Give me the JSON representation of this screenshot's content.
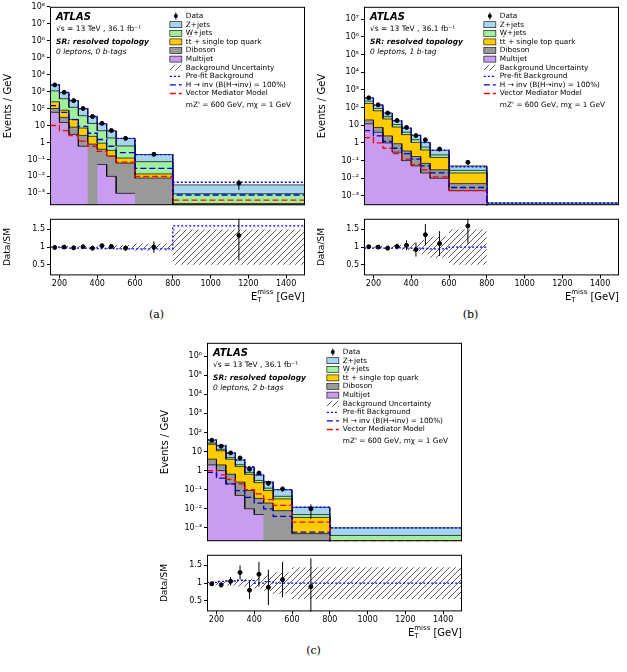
{
  "chart_data": [
    {
      "type": "histogram",
      "panel": "(a)",
      "log": "y",
      "stacked": true,
      "grid": false,
      "legend": "upper right",
      "atlas_label": "ATLAS",
      "energy_label": "√s = 13 TeV , 36.1 fb⁻¹",
      "region": "SR: resolved topology",
      "selection": "0 leptons, 0 b-tags",
      "annotation": "mZ' = 600 GeV, mχ = 1 GeV",
      "x_label": {
        "text": "E",
        "sub": "T",
        "sup": "miss",
        "unit": "[GeV]"
      },
      "y_label": "Events / GeV",
      "bins": [
        150,
        200,
        250,
        300,
        350,
        400,
        450,
        500,
        600,
        800,
        1500
      ],
      "xlim": [
        150,
        1500
      ],
      "xticks": [
        200,
        400,
        600,
        800,
        1000,
        1200,
        1400
      ],
      "ylim": [
        0.0002,
        100000000
      ],
      "yticks": [
        {
          "value": 0.001,
          "label": "10⁻³"
        },
        {
          "value": 0.01,
          "label": "10⁻²"
        },
        {
          "value": 0.1,
          "label": "10⁻¹"
        },
        1,
        10,
        {
          "value": 100,
          "label": "10²"
        },
        {
          "value": 1000,
          "label": "10³"
        },
        {
          "value": 10000,
          "label": "10⁴"
        },
        {
          "value": 100000,
          "label": "10⁵"
        },
        {
          "value": 1000000,
          "label": "10⁶"
        },
        {
          "value": 10000000,
          "label": "10⁷"
        },
        {
          "value": 100000000,
          "label": "10⁸"
        }
      ],
      "series": [
        {
          "name": "Z+jets",
          "color": "#a6d5f0",
          "values": [
            1400,
            520,
            175,
            60,
            21,
            8,
            3.1,
            1.1,
            0.12,
            0.0022
          ]
        },
        {
          "name": "W+jets",
          "color": "#a0f0a0",
          "values": [
            850,
            300,
            95,
            31,
            11,
            4,
            1.5,
            0.5,
            0.06,
            0.0007
          ]
        },
        {
          "name": "tt̄ + single top quark",
          "color": "#ffcc00",
          "values": [
            150,
            50,
            15,
            4.5,
            1.5,
            0.5,
            0.18,
            0.06,
            0.006,
            5e-05
          ]
        },
        {
          "name": "Diboson",
          "color": "#999999",
          "values": [
            40,
            15,
            5,
            2,
            0.8,
            0.35,
            0.15,
            0.06,
            0.008,
            0.0002
          ]
        },
        {
          "name": "Multijet",
          "color": "#c89cf0",
          "values": [
            60,
            15,
            3,
            0.6,
            0,
            0.05,
            0.01,
            0.001,
            0,
            0
          ]
        }
      ],
      "data": {
        "name": "Data",
        "color": "#000000",
        "values": [
          2480,
          905,
          295,
          101,
          34,
          13.5,
          5.1,
          1.75,
          0.2,
          0.004
        ],
        "errors": [
          7.0,
          4.3,
          2.4,
          1.4,
          0.82,
          0.52,
          0.32,
          0.13,
          0.032,
          0.0024
        ]
      },
      "uncertainty": {
        "name": "Background Uncertainty",
        "values": [
          0.03,
          0.03,
          0.03,
          0.03,
          0.035,
          0.04,
          0.05,
          0.06,
          0.1,
          0.5
        ]
      },
      "lines": [
        {
          "name": "Pre-fit Background",
          "color": "#0000ff",
          "line_style": "dotted",
          "values": [
            2450,
            880,
            290,
            98,
            34,
            12.7,
            4.9,
            1.75,
            0.19,
            0.0045
          ]
        },
        {
          "name": "H → inv (B(H→inv) = 100%)",
          "color": "#0000cc",
          "line_style": "dashed",
          "values": [
            150,
            60,
            22,
            9,
            3.5,
            1.5,
            0.6,
            0.25,
            0.03,
            0.0008
          ]
        },
        {
          "name": "Vector Mediator Model",
          "color": "#ff0000",
          "line_style": "dashed",
          "values": [
            10,
            5,
            2.5,
            1.2,
            0.6,
            0.3,
            0.15,
            0.07,
            0.01,
            0.0004
          ]
        }
      ],
      "ratio": {
        "y_label": "Data/SM",
        "ylim": [
          0.2,
          1.8
        ],
        "yticks": [
          0.5,
          1,
          1.5
        ],
        "values": [
          0.99,
          1.0,
          0.98,
          1.01,
          0.97,
          1.04,
          1.02,
          0.97,
          1.0,
          1.33
        ],
        "errors": [
          0.01,
          0.01,
          0.01,
          0.015,
          0.025,
          0.04,
          0.06,
          0.08,
          0.16,
          0.7
        ],
        "prefit": [
          1.0,
          0.98,
          0.97,
          0.97,
          0.97,
          0.96,
          0.96,
          0.95,
          0.95,
          1.6
        ]
      }
    },
    {
      "type": "histogram",
      "panel": "(b)",
      "log": "y",
      "stacked": true,
      "grid": false,
      "legend": "upper right",
      "atlas_label": "ATLAS",
      "energy_label": "√s = 13 TeV , 36.1 fb⁻¹",
      "region": "SR: resolved topology",
      "selection": "0 leptons, 1 b-tag",
      "annotation": "mZ' = 600 GeV, mχ = 1 GeV",
      "x_label": {
        "text": "E",
        "sub": "T",
        "sup": "miss",
        "unit": "[GeV]"
      },
      "y_label": "Events / GeV",
      "bins": [
        150,
        200,
        250,
        300,
        350,
        400,
        450,
        500,
        600,
        800,
        1500
      ],
      "xlim": [
        150,
        1500
      ],
      "xticks": [
        200,
        400,
        600,
        800,
        1000,
        1200,
        1400
      ],
      "ylim": [
        0.0003,
        50000000
      ],
      "yticks": [
        {
          "value": 0.001,
          "label": "10⁻³"
        },
        {
          "value": 0.01,
          "label": "10⁻²"
        },
        {
          "value": 0.1,
          "label": "10⁻¹"
        },
        1,
        10,
        {
          "value": 100,
          "label": "10²"
        },
        {
          "value": 1000,
          "label": "10³"
        },
        {
          "value": 10000,
          "label": "10⁴"
        },
        {
          "value": 100000,
          "label": "10⁵"
        },
        {
          "value": 1000000,
          "label": "10⁶"
        },
        {
          "value": 10000000,
          "label": "10⁷"
        }
      ],
      "series": [
        {
          "name": "Z+jets",
          "color": "#a6d5f0",
          "values": [
            120,
            50,
            19,
            7,
            2.8,
            1.2,
            0.5,
            0.18,
            0.022,
            0.0002
          ]
        },
        {
          "name": "W+jets",
          "color": "#a0f0a0",
          "values": [
            60,
            24,
            8,
            3,
            1.1,
            0.45,
            0.18,
            0.06,
            0.008,
            0.0001
          ]
        },
        {
          "name": "tt̄ + single top quark",
          "color": "#ffcc00",
          "values": [
            150,
            58,
            20,
            7,
            2.6,
            0.9,
            0.33,
            0.12,
            0.015,
            0.0001
          ]
        },
        {
          "name": "Diboson",
          "color": "#999999",
          "values": [
            8,
            3.5,
            1.5,
            0.6,
            0.25,
            0.12,
            0.05,
            0.02,
            0.003,
            0
          ]
        },
        {
          "name": "Multijet",
          "color": "#c89cf0",
          "values": [
            12,
            4,
            1,
            0.3,
            0.1,
            0.05,
            0.02,
            0.01,
            0.002,
            0
          ]
        }
      ],
      "data": {
        "name": "Data",
        "color": "#000000",
        "values": [
          355,
          142,
          49,
          18.5,
          7.5,
          2.6,
          1.5,
          0.45,
          0.08,
          null
        ],
        "errors": [
          2.7,
          1.7,
          1.0,
          0.61,
          0.39,
          0.23,
          0.17,
          0.067,
          0.02,
          null
        ]
      },
      "uncertainty": {
        "name": "Background Uncertainty",
        "values": [
          0.04,
          0.04,
          0.05,
          0.06,
          0.08,
          0.12,
          0.2,
          0.3,
          0.5,
          null
        ]
      },
      "lines": [
        {
          "name": "Pre-fit Background",
          "color": "#0000ff",
          "line_style": "dotted",
          "values": [
            340,
            138,
            48,
            17.5,
            6.8,
            2.7,
            1.05,
            0.38,
            0.045,
            0.0004
          ]
        },
        {
          "name": "H → inv (B(H→inv) = 100%)",
          "color": "#0000cc",
          "line_style": "dashed",
          "values": [
            5,
            2.5,
            1.2,
            0.5,
            0.25,
            0.12,
            0.05,
            0.02,
            0.003,
            0.0001
          ]
        },
        {
          "name": "Vector Mediator Model",
          "color": "#ff0000",
          "line_style": "dashed",
          "values": [
            2,
            1,
            0.5,
            0.25,
            0.12,
            0.06,
            0.03,
            0.012,
            0.002,
            5e-05
          ]
        }
      ],
      "ratio": {
        "y_label": "Data/SM",
        "ylim": [
          0.2,
          1.8
        ],
        "yticks": [
          0.5,
          1,
          1.5
        ],
        "values": [
          1.01,
          1.0,
          0.97,
          1.02,
          1.05,
          0.93,
          1.35,
          1.1,
          1.6,
          null
        ],
        "errors": [
          0.02,
          0.03,
          0.05,
          0.08,
          0.14,
          0.2,
          0.3,
          0.35,
          0.5,
          null
        ],
        "prefit": [
          0.97,
          0.98,
          0.97,
          0.98,
          0.97,
          0.97,
          0.96,
          0.95,
          1.0,
          null
        ]
      }
    },
    {
      "type": "histogram",
      "panel": "(c)",
      "log": "y",
      "stacked": true,
      "grid": false,
      "legend": "upper right",
      "atlas_label": "ATLAS",
      "energy_label": "√s = 13 TeV , 36.1 fb⁻¹",
      "region": "SR: resolved topology",
      "selection": "0 leptons, 2 b-tags",
      "annotation": "mZ' = 600 GeV, mχ = 1 GeV",
      "x_label": {
        "text": "E",
        "sub": "T",
        "sup": "miss",
        "unit": "[GeV]"
      },
      "y_label": "Events / GeV",
      "bins": [
        150,
        200,
        250,
        300,
        350,
        400,
        450,
        500,
        600,
        800,
        1500
      ],
      "xlim": [
        150,
        1500
      ],
      "xticks": [
        200,
        400,
        600,
        800,
        1000,
        1200,
        1400
      ],
      "ylim": [
        0.0002,
        5000000
      ],
      "yticks": [
        {
          "value": 0.001,
          "label": "10⁻³"
        },
        {
          "value": 0.01,
          "label": "10⁻²"
        },
        {
          "value": 0.1,
          "label": "10⁻¹"
        },
        1,
        10,
        {
          "value": 100,
          "label": "10²"
        },
        {
          "value": 1000,
          "label": "10³"
        },
        {
          "value": 10000,
          "label": "10⁴"
        },
        {
          "value": 100000,
          "label": "10⁵"
        },
        {
          "value": 1000000,
          "label": "10⁶"
        }
      ],
      "series": [
        {
          "name": "Z+jets",
          "color": "#a6d5f0",
          "values": [
            12,
            7,
            3.2,
            1.5,
            0.7,
            0.3,
            0.13,
            0.055,
            0.007,
            0.0006
          ]
        },
        {
          "name": "W+jets",
          "color": "#a0f0a0",
          "values": [
            4,
            2,
            0.9,
            0.4,
            0.17,
            0.07,
            0.03,
            0.012,
            0.0015,
            0.0003
          ]
        },
        {
          "name": "tt̄ + single top quark",
          "color": "#ffcc00",
          "values": [
            20,
            9,
            3.3,
            1.4,
            0.55,
            0.2,
            0.07,
            0.025,
            0.003,
            0.0001
          ]
        },
        {
          "name": "Diboson",
          "color": "#999999",
          "values": [
            2,
            1,
            0.45,
            0.2,
            0.08,
            0.03,
            0.02,
            0.008,
            0.0005,
            0
          ]
        },
        {
          "name": "Multijet",
          "color": "#c89cf0",
          "values": [
            2,
            1,
            0.2,
            0.05,
            0.01,
            0.005,
            0,
            0,
            0,
            0
          ]
        }
      ],
      "data": {
        "name": "Data",
        "color": "#000000",
        "values": [
          39,
          19,
          8.5,
          4.6,
          1.2,
          0.75,
          0.22,
          0.11,
          0.01,
          null
        ],
        "errors": [
          0.88,
          0.62,
          0.41,
          0.3,
          0.15,
          0.12,
          0.066,
          0.033,
          0.007,
          null
        ]
      },
      "uncertainty": {
        "name": "Background Uncertainty",
        "values": [
          0.06,
          0.06,
          0.07,
          0.09,
          0.12,
          0.16,
          0.22,
          0.3,
          0.45,
          0.45
        ]
      },
      "lines": [
        {
          "name": "Pre-fit Background",
          "color": "#0000ff",
          "line_style": "dotted",
          "values": [
            41,
            21,
            8.5,
            3.8,
            1.6,
            0.58,
            0.26,
            0.1,
            0.012,
            0.001
          ]
        },
        {
          "name": "H → inv (B(H→inv) = 100%)",
          "color": "#0000cc",
          "line_style": "dashed",
          "values": [
            0.8,
            0.4,
            0.2,
            0.09,
            0.04,
            0.02,
            0.01,
            0.004,
            0.0006,
            5e-05
          ]
        },
        {
          "name": "Vector Mediator Model",
          "color": "#ff0000",
          "line_style": "dashed",
          "values": [
            1,
            0.6,
            0.35,
            0.2,
            0.1,
            0.06,
            0.03,
            0.015,
            0.002,
            0.0002
          ]
        }
      ],
      "ratio": {
        "y_label": "Data/SM",
        "ylim": [
          0.2,
          1.8
        ],
        "yticks": [
          0.5,
          1,
          1.5
        ],
        "values": [
          0.98,
          0.95,
          1.05,
          1.3,
          0.8,
          1.25,
          0.88,
          1.1,
          0.9,
          null
        ],
        "errors": [
          0.05,
          0.07,
          0.12,
          0.2,
          0.25,
          0.35,
          0.5,
          0.5,
          0.8,
          null
        ],
        "prefit": [
          1.02,
          1.05,
          1.06,
          1.08,
          1.07,
          1.0,
          1.04,
          1.0,
          1.0,
          1.0
        ]
      }
    }
  ]
}
